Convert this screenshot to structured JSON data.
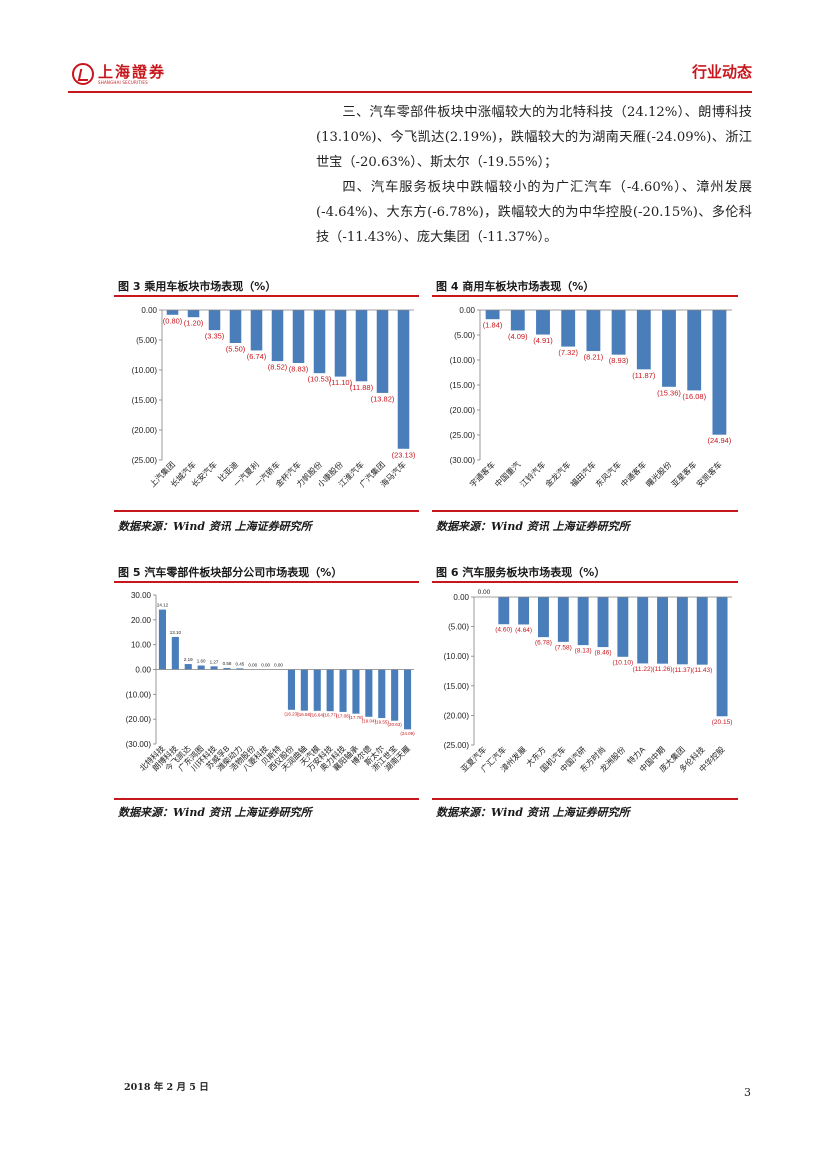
{
  "header": {
    "logo_text": "上海證券",
    "logo_sub": "SHANGHAI SECURITIES",
    "section_title": "行业动态"
  },
  "paragraphs": [
    "三、汽车零部件板块中涨幅较大的为北特科技（24.12%）、朗博科技(13.10%)、今飞凯达(2.19%)，跌幅较大的为湖南天雁(-24.09%)、浙江世宝（-20.63%）、斯太尔（-19.55%）；",
    "四、汽车服务板块中跌幅较小的为广汇汽车（-4.60%）、漳州发展(-4.64%)、大东方(-6.78%)，跌幅较大的为中华控股(-20.15%)、多伦科技（-11.43%）、庞大集团（-11.37%）。"
  ],
  "figures": {
    "fig3": {
      "title": "图 3 乘用车板块市场表现（%）",
      "source": "数据来源：Wind 资讯 上海证券研究所"
    },
    "fig4": {
      "title": "图 4 商用车板块市场表现（%）",
      "source": "数据来源：Wind 资讯 上海证券研究所"
    },
    "fig5": {
      "title": "图 5 汽车零部件板块部分公司市场表现（%）",
      "source": "数据来源：Wind 资讯 上海证券研究所"
    },
    "fig6": {
      "title": "图 6 汽车服务板块市场表现（%）",
      "source": "数据来源：Wind 资讯 上海证券研究所"
    }
  },
  "footer": {
    "date": "2018 年 2 月 5 日",
    "page": "3"
  },
  "colors": {
    "bar": "#4a7ebb",
    "label": "#c8161d",
    "accent": "#c8161d"
  },
  "chart_data": [
    {
      "id": "fig3",
      "type": "bar",
      "title": "乘用车板块市场表现（%）",
      "categories": [
        "上汽集团",
        "长城汽车",
        "长安汽车",
        "比亚迪",
        "一汽夏利",
        "一汽轿车",
        "金杯汽车",
        "力帆股份",
        "小康股份",
        "江淮汽车",
        "广汽集团",
        "海马汽车"
      ],
      "values": [
        -0.8,
        -1.2,
        -3.35,
        -5.5,
        -6.74,
        -8.52,
        -8.83,
        -10.53,
        -11.1,
        -11.88,
        -13.82,
        -23.13
      ],
      "labels": [
        "(0.80)",
        "(1.20)",
        "(3.35)",
        "(5.50)",
        "(6.74)",
        "(8.52)",
        "(8.83)",
        "(10.53)",
        "(11.10)",
        "(11.88)",
        "(13.82)",
        "(23.13)"
      ],
      "ylim": [
        -25,
        0
      ],
      "yticks": [
        0,
        -5,
        -10,
        -15,
        -20,
        -25
      ],
      "ytick_labels": [
        "0.00",
        "(5.00)",
        "(10.00)",
        "(15.00)",
        "(20.00)",
        "(25.00)"
      ]
    },
    {
      "id": "fig4",
      "type": "bar",
      "title": "商用车板块市场表现（%）",
      "categories": [
        "宇通客车",
        "中国重汽",
        "江铃汽车",
        "金龙汽车",
        "福田汽车",
        "东风汽车",
        "中通客车",
        "曙光股份",
        "亚星客车",
        "安凯客车"
      ],
      "values": [
        -1.84,
        -4.09,
        -4.91,
        -7.32,
        -8.21,
        -8.93,
        -11.87,
        -15.36,
        -16.08,
        -24.94
      ],
      "labels": [
        "(1.84)",
        "(4.09)",
        "(4.91)",
        "(7.32)",
        "(8.21)",
        "(8.93)",
        "(11.87)",
        "(15.36)",
        "(16.08)",
        "(24.94)"
      ],
      "ylim": [
        -30,
        0
      ],
      "yticks": [
        0,
        -5,
        -10,
        -15,
        -20,
        -25,
        -30
      ],
      "ytick_labels": [
        "0.00",
        "(5.00)",
        "(10.00)",
        "(15.00)",
        "(20.00)",
        "(25.00)",
        "(30.00)"
      ]
    },
    {
      "id": "fig5",
      "type": "bar",
      "title": "汽车零部件板块部分公司市场表现（%）",
      "categories": [
        "北特科技",
        "朗博科技",
        "今飞凯达",
        "广东鸿图",
        "川环科技",
        "苏威孚B",
        "潍柴动力",
        "浩物股份",
        "八菱科技",
        "贝斯特",
        "西仪股份",
        "天润曲轴",
        "天汽模",
        "万安科技",
        "奥力科技",
        "襄阳轴承",
        "博尔德",
        "斯太尔",
        "浙江世宝",
        "湖南天雁"
      ],
      "values": [
        24.12,
        13.1,
        2.19,
        1.6,
        1.27,
        0.58,
        0.45,
        0.0,
        0.0,
        0.0,
        -16.23,
        -16.58,
        -16.64,
        -16.77,
        -17.08,
        -17.78,
        -19.04,
        -19.55,
        -20.63,
        -24.09
      ],
      "labels": [
        "24.12",
        "13.10",
        "2.19",
        "1.60",
        "1.27",
        "0.58",
        "0.45",
        "0.00",
        "0.00",
        "0.00",
        "(16.23)",
        "(16.58)",
        "(16.64)",
        "(16.77)",
        "(17.08)",
        "(17.78)",
        "(19.04)",
        "(19.55)",
        "(20.63)",
        "(24.09)"
      ],
      "ylim": [
        -30,
        30
      ],
      "yticks": [
        30,
        20,
        10,
        0,
        -10,
        -20,
        -30
      ],
      "ytick_labels": [
        "30.00",
        "20.00",
        "10.00",
        "0.00",
        "(10.00)",
        "(20.00)",
        "(30.00)"
      ]
    },
    {
      "id": "fig6",
      "type": "bar",
      "title": "汽车服务板块市场表现（%）",
      "categories": [
        "亚夏汽车",
        "广汇汽车",
        "漳州发展",
        "大东方",
        "国机汽车",
        "中国汽研",
        "东方时尚",
        "龙洲股份",
        "特力A",
        "中国中期",
        "庞大集团",
        "多伦科技",
        "中华控股"
      ],
      "values": [
        0.0,
        -4.6,
        -4.64,
        -6.78,
        -7.58,
        -8.13,
        -8.46,
        -10.1,
        -11.22,
        -11.26,
        -11.37,
        -11.43,
        -20.15
      ],
      "labels": [
        "0.00",
        "(4.60)",
        "(4.64)",
        "(6.78)",
        "(7.58)",
        "(8.13)",
        "(8.46)",
        "(10.10)",
        "(11.22)",
        "(11.26)",
        "(11.37)",
        "(11.43)",
        "(20.15)"
      ],
      "ylim": [
        -25,
        0
      ],
      "yticks": [
        0,
        -5,
        -10,
        -15,
        -20,
        -25
      ],
      "ytick_labels": [
        "0.00",
        "(5.00)",
        "(10.00)",
        "(15.00)",
        "(20.00)",
        "(25.00)"
      ]
    }
  ]
}
